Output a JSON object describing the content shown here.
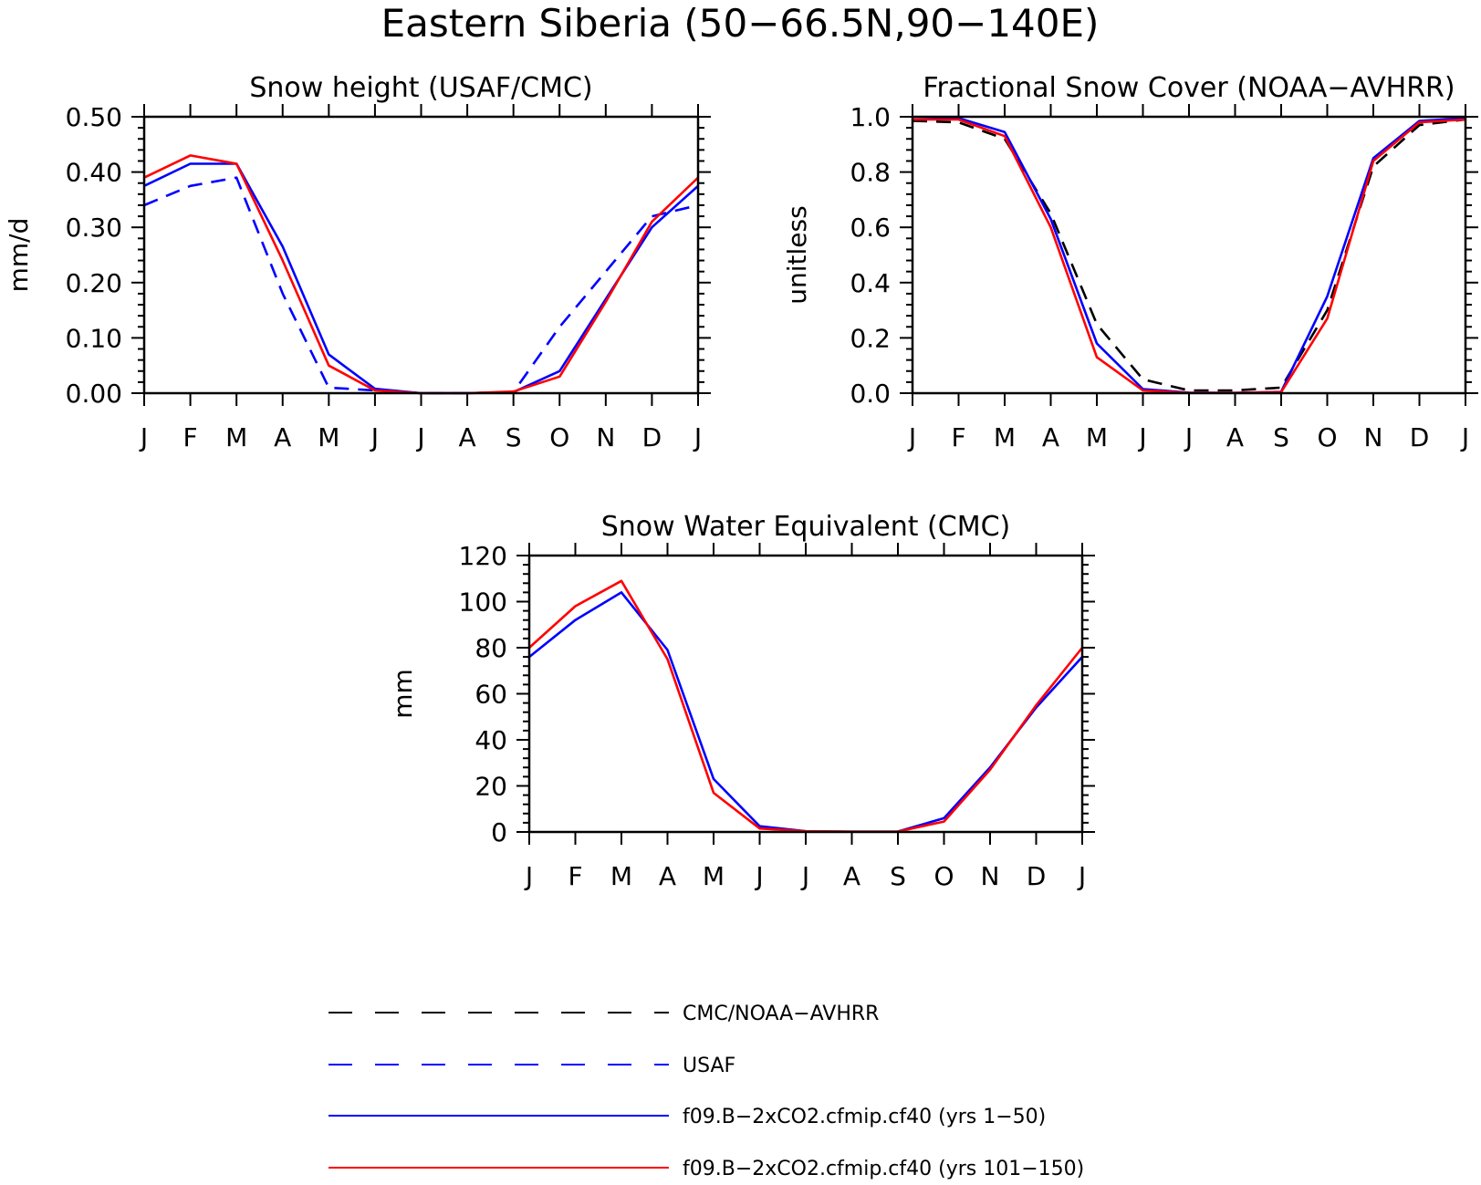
{
  "figure": {
    "title": "Eastern Siberia (50−66.5N,90−140E)"
  },
  "legend": [
    {
      "label": "CMC/NOAA−AVHRR",
      "color": "#000000",
      "dash": true
    },
    {
      "label": "USAF",
      "color": "#0000ff",
      "dash": true
    },
    {
      "label": "f09.B−2xCO2.cfmip.cf40 (yrs 1−50)",
      "color": "#0000ff",
      "dash": false
    },
    {
      "label": "f09.B−2xCO2.cfmip.cf40 (yrs 101−150)",
      "color": "#ff0000",
      "dash": false
    }
  ],
  "chart_data": [
    {
      "type": "line",
      "title": "Snow height (USAF/CMC)",
      "ylabel": "mm/d",
      "xlabel": "",
      "categories": [
        "J",
        "F",
        "M",
        "A",
        "M",
        "J",
        "J",
        "A",
        "S",
        "O",
        "N",
        "D",
        "J"
      ],
      "ylim": [
        0,
        0.5
      ],
      "yticks": [
        "0.00",
        "0.10",
        "0.20",
        "0.30",
        "0.40",
        "0.50"
      ],
      "series": [
        {
          "name": "USAF",
          "color": "#0000ff",
          "dash": true,
          "values": [
            0.34,
            0.375,
            0.39,
            0.18,
            0.01,
            0.005,
            0.0,
            0.0,
            0.002,
            0.12,
            0.22,
            0.32,
            0.34
          ]
        },
        {
          "name": "f09.B−2xCO2.cfmip.cf40 (yrs 1−50)",
          "color": "#0000ff",
          "dash": false,
          "values": [
            0.375,
            0.415,
            0.415,
            0.265,
            0.07,
            0.008,
            0.0,
            0.0,
            0.002,
            0.04,
            0.17,
            0.3,
            0.375
          ]
        },
        {
          "name": "f09.B−2xCO2.cfmip.cf40 (yrs 101−150)",
          "color": "#ff0000",
          "dash": false,
          "values": [
            0.39,
            0.43,
            0.415,
            0.24,
            0.05,
            0.005,
            0.0,
            0.0,
            0.003,
            0.03,
            0.165,
            0.31,
            0.39
          ]
        }
      ]
    },
    {
      "type": "line",
      "title": "Fractional Snow Cover (NOAA−AVHRR)",
      "ylabel": "unitless",
      "xlabel": "",
      "categories": [
        "J",
        "F",
        "M",
        "A",
        "M",
        "J",
        "J",
        "A",
        "S",
        "O",
        "N",
        "D",
        "J"
      ],
      "ylim": [
        0,
        1.0
      ],
      "yticks": [
        "0.0",
        "0.2",
        "0.4",
        "0.6",
        "0.8",
        "1.0"
      ],
      "series": [
        {
          "name": "CMC/NOAA−AVHRR",
          "color": "#000000",
          "dash": true,
          "values": [
            0.985,
            0.98,
            0.92,
            0.65,
            0.25,
            0.05,
            0.01,
            0.01,
            0.02,
            0.3,
            0.82,
            0.97,
            0.99
          ]
        },
        {
          "name": "f09.B−2xCO2.cfmip.cf40 (yrs 1−50)",
          "color": "#0000ff",
          "dash": false,
          "values": [
            0.99,
            0.995,
            0.945,
            0.63,
            0.18,
            0.015,
            0.002,
            0.001,
            0.005,
            0.35,
            0.85,
            0.985,
            0.995
          ]
        },
        {
          "name": "f09.B−2xCO2.cfmip.cf40 (yrs 101−150)",
          "color": "#ff0000",
          "dash": false,
          "values": [
            0.99,
            0.99,
            0.93,
            0.6,
            0.13,
            0.01,
            0.001,
            0.001,
            0.004,
            0.27,
            0.84,
            0.98,
            0.99
          ]
        }
      ]
    },
    {
      "type": "line",
      "title": "Snow Water Equivalent (CMC)",
      "ylabel": "mm",
      "xlabel": "",
      "categories": [
        "J",
        "F",
        "M",
        "A",
        "M",
        "J",
        "J",
        "A",
        "S",
        "O",
        "N",
        "D",
        "J"
      ],
      "ylim": [
        0,
        120
      ],
      "yticks": [
        "0",
        "20",
        "40",
        "60",
        "80",
        "100",
        "120"
      ],
      "series": [
        {
          "name": "f09.B−2xCO2.cfmip.cf40 (yrs 1−50)",
          "color": "#0000ff",
          "dash": false,
          "values": [
            76,
            92,
            104,
            79,
            23,
            2.5,
            0.3,
            0.1,
            0.2,
            6,
            28,
            54,
            76
          ]
        },
        {
          "name": "f09.B−2xCO2.cfmip.cf40 (yrs 101−150)",
          "color": "#ff0000",
          "dash": false,
          "values": [
            80,
            98,
            109,
            75,
            17,
            1.5,
            0.3,
            0.1,
            0.2,
            4.5,
            27,
            55,
            80
          ]
        }
      ]
    }
  ]
}
